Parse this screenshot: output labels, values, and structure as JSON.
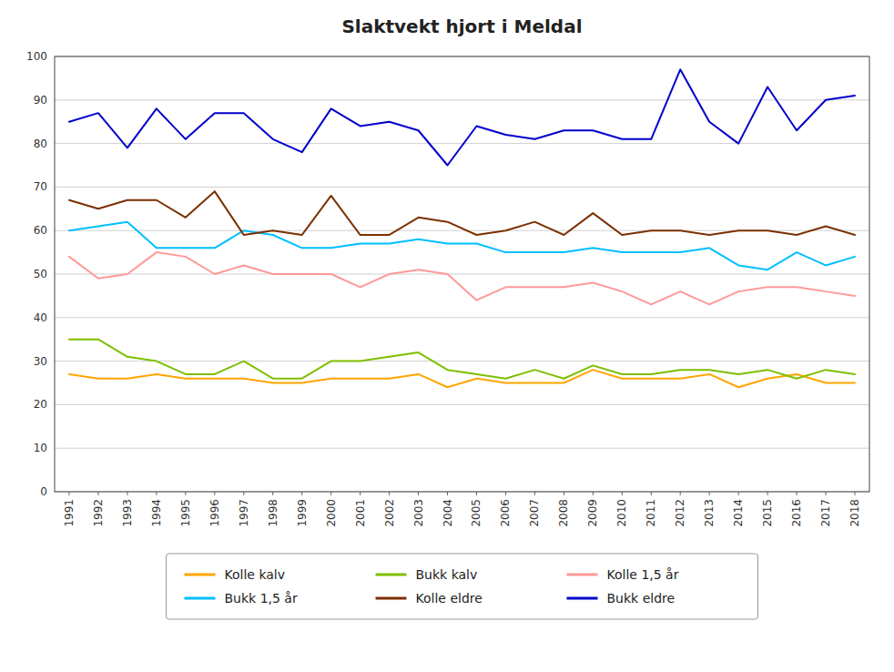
{
  "chart_data": {
    "type": "line",
    "title": "Slaktvekt hjort i Meldal",
    "x": [
      1991,
      1992,
      1993,
      1994,
      1995,
      1996,
      1997,
      1998,
      1999,
      2000,
      2001,
      2002,
      2003,
      2004,
      2005,
      2006,
      2007,
      2008,
      2009,
      2010,
      2011,
      2012,
      2013,
      2014,
      2015,
      2016,
      2017,
      2018
    ],
    "series": [
      {
        "name": "Kolle kalv",
        "color": "#FFA500",
        "values": [
          27,
          26,
          26,
          27,
          26,
          26,
          26,
          25,
          25,
          26,
          26,
          26,
          27,
          24,
          26,
          25,
          25,
          25,
          28,
          26,
          26,
          26,
          27,
          24,
          26,
          27,
          25,
          25
        ]
      },
      {
        "name": "Bukk kalv",
        "color": "#7FBF00",
        "values": [
          35,
          35,
          31,
          30,
          27,
          27,
          30,
          26,
          26,
          30,
          30,
          31,
          32,
          28,
          27,
          26,
          28,
          26,
          29,
          27,
          27,
          28,
          28,
          27,
          28,
          26,
          28,
          27
        ]
      },
      {
        "name": "Kolle 1,5 år",
        "color": "#FF9999",
        "values": [
          54,
          49,
          50,
          55,
          54,
          50,
          52,
          50,
          50,
          50,
          47,
          50,
          51,
          50,
          44,
          47,
          47,
          47,
          48,
          46,
          43,
          46,
          43,
          46,
          47,
          47,
          46,
          45
        ]
      },
      {
        "name": "Bukk 1,5 år",
        "color": "#00BFFF",
        "values": [
          60,
          61,
          62,
          56,
          56,
          56,
          60,
          59,
          56,
          56,
          57,
          57,
          58,
          57,
          57,
          55,
          55,
          55,
          56,
          55,
          55,
          55,
          56,
          52,
          51,
          55,
          52,
          54
        ]
      },
      {
        "name": "Kolle eldre",
        "color": "#7B3000",
        "values": [
          67,
          65,
          67,
          67,
          63,
          69,
          59,
          60,
          59,
          68,
          59,
          59,
          63,
          62,
          59,
          60,
          62,
          59,
          64,
          59,
          60,
          60,
          59,
          60,
          60,
          59,
          61,
          59
        ]
      },
      {
        "name": "Bukk eldre",
        "color": "#0000CC",
        "values": [
          85,
          87,
          79,
          88,
          81,
          87,
          87,
          81,
          78,
          88,
          84,
          85,
          83,
          75,
          84,
          82,
          81,
          83,
          83,
          81,
          81,
          97,
          85,
          80,
          93,
          83,
          90,
          91
        ]
      }
    ],
    "xlim": [
      1990.5,
      2018.5
    ],
    "xticks": [
      1991,
      1992,
      1993,
      1994,
      1995,
      1996,
      1997,
      1998,
      1999,
      2000,
      2001,
      2002,
      2003,
      2004,
      2005,
      2006,
      2007,
      2008,
      2009,
      2010,
      2011,
      2012,
      2013,
      2014,
      2015,
      2016,
      2017,
      2018
    ],
    "ylim": [
      0,
      100
    ],
    "yticks": [
      0,
      10,
      20,
      30,
      40,
      50,
      60,
      70,
      80,
      90,
      100
    ],
    "grid": true,
    "legend": "bottom"
  }
}
